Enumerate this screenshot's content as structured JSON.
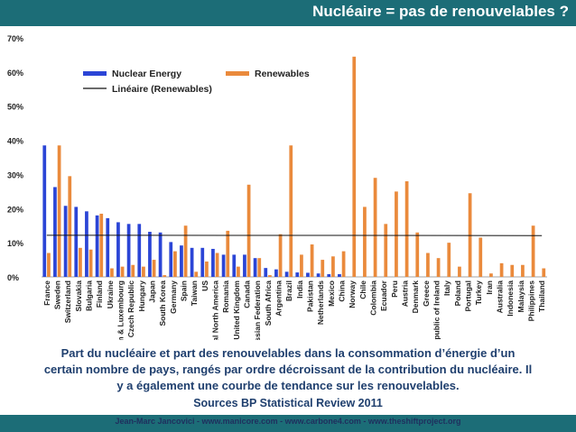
{
  "header": {
    "title": "Nucléaire = pas de renouvelables ?"
  },
  "chart_data": {
    "type": "bar",
    "ylim": [
      0,
      70
    ],
    "yticks": [
      "0%",
      "10%",
      "20%",
      "30%",
      "40%",
      "50%",
      "60%",
      "70%"
    ],
    "grid": false,
    "legend_position": "top-left",
    "categories": [
      "France",
      "Sweden",
      "Switzerland",
      "Slovakia",
      "Bulgaria",
      "Finland",
      "Ukraine",
      "Belgium & Luxembourg",
      "Czech Republic",
      "Hungary",
      "Japan",
      "South Korea",
      "Germany",
      "Spain",
      "Taiwan",
      "US",
      "Total North America",
      "Romania",
      "United Kingdom",
      "Canada",
      "Russian Federation",
      "South Africa",
      "Argentina",
      "Brazil",
      "India",
      "Pakistan",
      "Netherlands",
      "Mexico",
      "China",
      "Norway",
      "Chile",
      "Colombia",
      "Ecuador",
      "Peru",
      "Austria",
      "Denmark",
      "Greece",
      "Republic of Ireland",
      "Italy",
      "Poland",
      "Portugal",
      "Turkey",
      "Iran",
      "Australia",
      "Indonesia",
      "Malaysia",
      "Philippines",
      "Thailand"
    ],
    "series": [
      {
        "name": "Nuclear Energy",
        "color": "#2b45d6",
        "values": [
          38.5,
          26.3,
          20.8,
          20.5,
          19.2,
          18.0,
          17.2,
          16.0,
          15.5,
          15.5,
          13.2,
          13.0,
          10.2,
          9.2,
          8.5,
          8.5,
          8.2,
          6.5,
          6.5,
          6.5,
          5.5,
          2.6,
          2.2,
          1.5,
          1.3,
          1.2,
          1.0,
          0.8,
          0.8,
          0,
          0,
          0,
          0,
          0,
          0,
          0,
          0,
          0,
          0,
          0,
          0,
          0,
          0,
          0,
          0,
          0,
          0,
          0
        ]
      },
      {
        "name": "Renewables",
        "color": "#ea8a3c",
        "values": [
          7.0,
          38.5,
          29.5,
          8.5,
          8.0,
          18.5,
          2.5,
          3.0,
          3.5,
          3.0,
          5.0,
          0.5,
          7.5,
          15.0,
          1.5,
          4.5,
          7.0,
          13.5,
          3.0,
          27.0,
          5.5,
          0.5,
          12.5,
          38.5,
          6.5,
          9.5,
          5.0,
          6.0,
          7.5,
          64.5,
          20.5,
          29.0,
          15.5,
          25.0,
          28.0,
          13.0,
          7.0,
          5.5,
          10.0,
          3.0,
          24.5,
          11.5,
          1.0,
          4.0,
          3.5,
          3.5,
          15.0,
          2.5
        ]
      }
    ],
    "trendline": {
      "name": "Linéaire (Renewables)",
      "color": "#111111",
      "y_start": 12.2,
      "y_end": 12.1
    }
  },
  "caption": {
    "line1": "Part du nucléaire et part des renouvelables dans la consommation d’énergie d’un",
    "line2": "certain nombre de pays, rangés par ordre décroissant de la contribution du nucléaire. Il",
    "line3": "y a également une courbe de tendance sur les renouvelables."
  },
  "source": "Sources BP Statistical Review 2011",
  "footer": "Jean-Marc Jancovici - www.manicore.com - www.carbone4.com - www.theshiftproject.org"
}
